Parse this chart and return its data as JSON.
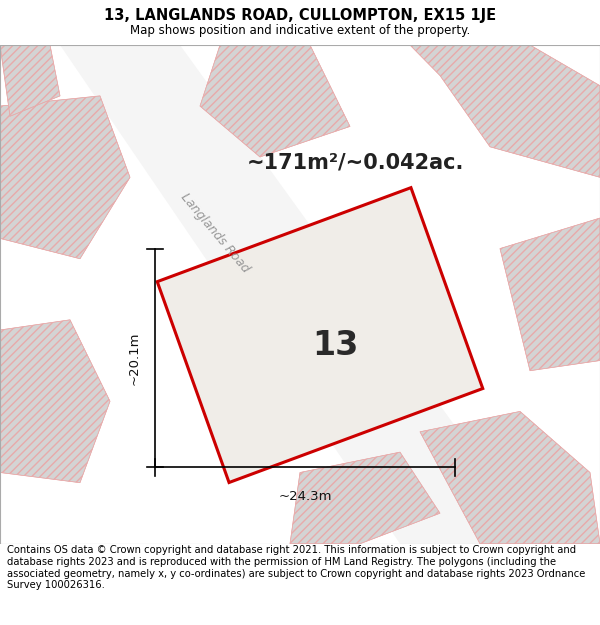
{
  "title": "13, LANGLANDS ROAD, CULLOMPTON, EX15 1JE",
  "subtitle": "Map shows position and indicative extent of the property.",
  "area_text": "~171m²/~0.042ac.",
  "width_text": "~24.3m",
  "height_text": "~20.1m",
  "label_text": "13",
  "road_label": "Langlands Road",
  "footer": "Contains OS data © Crown copyright and database right 2021. This information is subject to Crown copyright and database rights 2023 and is reproduced with the permission of HM Land Registry. The polygons (including the associated geometry, namely x, y co-ordinates) are subject to Crown copyright and database rights 2023 Ordnance Survey 100026316.",
  "map_bg": "#e8e8e8",
  "plot_fill": "#f0ede8",
  "plot_color": "#cc0000",
  "building_fill": "#d4d4d4",
  "hatch_color": "#e8aaaa",
  "road_fill": "#f5f5f5",
  "footer_fontsize": 7.2,
  "title_fontsize": 10.5
}
